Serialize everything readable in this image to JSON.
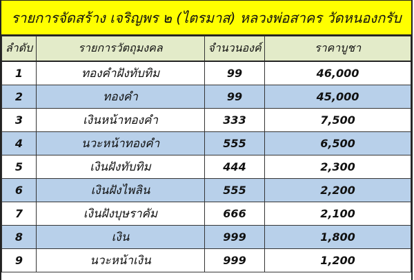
{
  "title": "รายการจัดสร้าง เจริญพร ๒ (ไตรมาส) หลวงพ่อสาคร วัดหนองกรับ",
  "colors": {
    "title_bg": "#ffff00",
    "header_bg": "#e3ebc9",
    "alt_row_bg": "#b8d0ea"
  },
  "headers": [
    "ลำดับ",
    "รายการวัตถุมงคล",
    "จำนวนองค์",
    "ราคาบูชา"
  ],
  "rows": [
    {
      "no": "1",
      "item": "ทองคำฝังทับทิม",
      "qty": "99",
      "price": "46,000"
    },
    {
      "no": "2",
      "item": "ทองคำ",
      "qty": "99",
      "price": "45,000"
    },
    {
      "no": "3",
      "item": "เงินหน้าทองคำ",
      "qty": "333",
      "price": "7,500"
    },
    {
      "no": "4",
      "item": "นวะหน้าทองคำ",
      "qty": "555",
      "price": "6,500"
    },
    {
      "no": "5",
      "item": "เงินฝังทับทิม",
      "qty": "444",
      "price": "2,300"
    },
    {
      "no": "6",
      "item": "เงินฝังไพลิน",
      "qty": "555",
      "price": "2,200"
    },
    {
      "no": "7",
      "item": "เงินฝังบุษราคัม",
      "qty": "666",
      "price": "2,100"
    },
    {
      "no": "8",
      "item": "เงิน",
      "qty": "999",
      "price": "1,800"
    },
    {
      "no": "9",
      "item": "นวะหน้าเงิน",
      "qty": "999",
      "price": "1,200"
    }
  ]
}
